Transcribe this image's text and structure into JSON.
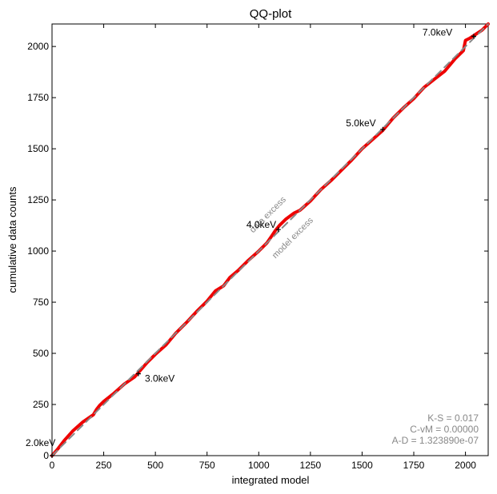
{
  "chart_data": {
    "type": "line",
    "title": "QQ-plot",
    "xlabel": "integrated model",
    "ylabel": "cumulative data counts",
    "xlim": [
      0,
      2110
    ],
    "ylim": [
      0,
      2110
    ],
    "xticks": [
      "0",
      "250",
      "500",
      "750",
      "1000",
      "1250",
      "1500",
      "1750",
      "2000"
    ],
    "yticks": [
      "0",
      "250",
      "500",
      "750",
      "1000",
      "1250",
      "1500",
      "1750",
      "2000"
    ],
    "grid": false,
    "series": [
      {
        "style": "solid",
        "color": "#ee0000",
        "x": [
          0,
          30,
          60,
          100,
          150,
          200,
          215,
          230,
          250,
          300,
          350,
          400,
          430,
          460,
          500,
          550,
          600,
          650,
          700,
          750,
          790,
          830,
          860,
          900,
          950,
          1000,
          1040,
          1060,
          1080,
          1100,
          1130,
          1170,
          1200,
          1250,
          1300,
          1350,
          1400,
          1450,
          1500,
          1550,
          1600,
          1650,
          1700,
          1750,
          1800,
          1850,
          1900,
          1950,
          1990,
          2000,
          2020,
          2050,
          2080,
          2110
        ],
        "y": [
          0,
          35,
          75,
          120,
          165,
          200,
          225,
          245,
          265,
          305,
          350,
          385,
          420,
          455,
          495,
          540,
          600,
          650,
          705,
          755,
          805,
          830,
          870,
          905,
          955,
          1000,
          1040,
          1070,
          1100,
          1125,
          1155,
          1185,
          1200,
          1245,
          1300,
          1345,
          1395,
          1445,
          1500,
          1545,
          1590,
          1650,
          1700,
          1745,
          1800,
          1840,
          1880,
          1940,
          1980,
          2030,
          2040,
          2060,
          2080,
          2110
        ]
      },
      {
        "style": "dashed",
        "color": "#888888",
        "x": [
          0,
          2110
        ],
        "y": [
          0,
          2110
        ]
      }
    ],
    "markers": [
      {
        "label": "2.0keV",
        "x": 0,
        "y": 0
      },
      {
        "label": "3.0keV",
        "x": 418,
        "y": 400
      },
      {
        "label": "4.0keV",
        "x": 1095,
        "y": 1105
      },
      {
        "label": "5.0keV",
        "x": 1600,
        "y": 1595
      },
      {
        "label": "7.0keV",
        "x": 2040,
        "y": 2050
      }
    ],
    "region_labels": [
      "data excess",
      "model excess"
    ],
    "stats": [
      "K-S = 0.017",
      "C-vM = 0.00000",
      "A-D = 1.323890e-07"
    ]
  }
}
